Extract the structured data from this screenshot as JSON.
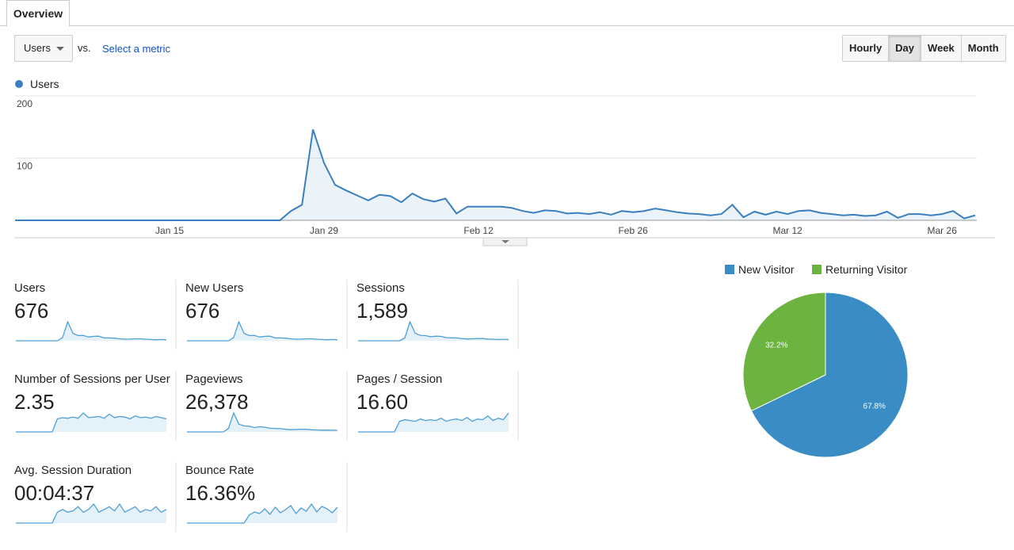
{
  "tabs": {
    "overview": "Overview"
  },
  "controls": {
    "metric": "Users",
    "vs": "vs.",
    "select_metric": "Select a metric",
    "periods": [
      "Hourly",
      "Day",
      "Week",
      "Month"
    ],
    "active_period": 1
  },
  "line_chart": {
    "type": "line",
    "series": [
      {
        "name": "Users",
        "color": "#3a7fbf",
        "values": [
          0,
          0,
          0,
          0,
          0,
          0,
          0,
          0,
          0,
          0,
          0,
          0,
          0,
          0,
          0,
          0,
          0,
          0,
          0,
          0,
          0,
          0,
          0,
          0,
          0,
          15,
          25,
          146,
          92,
          57,
          48,
          40,
          32,
          41,
          39,
          29,
          43,
          34,
          30,
          35,
          11,
          22,
          22,
          22,
          22,
          20,
          15,
          12,
          16,
          15,
          11,
          12,
          10,
          13,
          9,
          15,
          13,
          15,
          19,
          16,
          13,
          11,
          10,
          8,
          10,
          25,
          5,
          14,
          9,
          14,
          10,
          15,
          16,
          12,
          10,
          8,
          9,
          7,
          8,
          14,
          4,
          10,
          10,
          8,
          10,
          15,
          3,
          8
        ]
      }
    ],
    "categories": [
      null,
      null,
      null,
      null,
      null,
      null,
      null,
      null,
      null,
      null,
      null,
      null,
      null,
      null,
      "Jan 15",
      null,
      null,
      null,
      null,
      null,
      null,
      null,
      null,
      null,
      null,
      null,
      null,
      null,
      "Jan 29",
      null,
      null,
      null,
      null,
      null,
      null,
      null,
      null,
      null,
      null,
      null,
      null,
      null,
      "Feb 12",
      null,
      null,
      null,
      null,
      null,
      null,
      null,
      null,
      null,
      null,
      null,
      null,
      null,
      "Feb 26",
      null,
      null,
      null,
      null,
      null,
      null,
      null,
      null,
      null,
      null,
      null,
      null,
      null,
      "Mar 12",
      null,
      null,
      null,
      null,
      null,
      null,
      null,
      null,
      null,
      null,
      null,
      null,
      null,
      "Mar 26",
      null,
      null,
      null
    ],
    "ylim": [
      0,
      200
    ],
    "yticks": [
      100,
      200
    ],
    "grid": true
  },
  "pie_chart": {
    "type": "pie",
    "categories": [
      "New Visitor",
      "Returning Visitor"
    ],
    "values": [
      67.8,
      32.2
    ],
    "value_labels": [
      "67.8%",
      "32.2%"
    ],
    "colors": [
      "#3a8cc4",
      "#6db33f"
    ]
  },
  "metrics": [
    {
      "label": "Users",
      "value": "676",
      "spark": [
        0,
        0,
        0,
        0,
        0,
        0,
        0,
        0,
        0,
        25,
        146,
        57,
        40,
        41,
        29,
        34,
        35,
        22,
        22,
        20,
        15,
        12,
        13,
        15,
        15,
        12,
        10,
        8,
        10,
        8
      ]
    },
    {
      "label": "New Users",
      "value": "676",
      "spark": [
        0,
        0,
        0,
        0,
        0,
        0,
        0,
        0,
        0,
        25,
        146,
        57,
        40,
        41,
        29,
        34,
        35,
        22,
        22,
        20,
        15,
        12,
        13,
        15,
        15,
        12,
        10,
        8,
        10,
        8
      ]
    },
    {
      "label": "Sessions",
      "value": "1,589",
      "spark": [
        0,
        0,
        0,
        0,
        0,
        0,
        0,
        0,
        0,
        50,
        330,
        130,
        95,
        90,
        70,
        80,
        75,
        55,
        52,
        50,
        38,
        32,
        35,
        38,
        40,
        30,
        28,
        22,
        26,
        22
      ]
    },
    {
      "label": "Number of Sessions per User",
      "value": "2.35",
      "spark": [
        0,
        0,
        0,
        0,
        0,
        0,
        0,
        0,
        2.2,
        2.4,
        2.3,
        2.5,
        2.3,
        3.2,
        2.4,
        2.5,
        2.6,
        2.3,
        3.0,
        2.4,
        2.6,
        2.5,
        2.2,
        2.7,
        2.4,
        2.5,
        2.3,
        2.6,
        2.4,
        2.2
      ]
    },
    {
      "label": "Pageviews",
      "value": "26,378",
      "spark": [
        0,
        0,
        0,
        0,
        0,
        0,
        0,
        0,
        400,
        2200,
        900,
        700,
        650,
        500,
        600,
        550,
        420,
        400,
        380,
        300,
        260,
        280,
        300,
        310,
        250,
        230,
        200,
        210,
        190,
        180
      ]
    },
    {
      "label": "Pages / Session",
      "value": "16.60",
      "spark": [
        0,
        0,
        0,
        0,
        0,
        0,
        0,
        0,
        14,
        16,
        15,
        14,
        17,
        15,
        16,
        15,
        18,
        14,
        16,
        17,
        15,
        19,
        14,
        17,
        16,
        21,
        15,
        18,
        16,
        25
      ]
    },
    {
      "label": "Avg. Session Duration",
      "value": "00:04:37",
      "spark": [
        0,
        0,
        0,
        0,
        0,
        0,
        0,
        0,
        4,
        5,
        4,
        4.5,
        6,
        4,
        5,
        7,
        4,
        5,
        6,
        4.5,
        7,
        4,
        5,
        6,
        4,
        5,
        4.5,
        6,
        4,
        5
      ]
    },
    {
      "label": "Bounce Rate",
      "value": "16.36%",
      "spark": [
        0,
        0,
        0,
        0,
        0,
        0,
        0,
        0,
        0,
        0,
        0,
        0,
        10,
        14,
        12,
        18,
        11,
        20,
        13,
        17,
        22,
        12,
        19,
        15,
        24,
        14,
        21,
        18,
        13,
        20
      ]
    }
  ]
}
